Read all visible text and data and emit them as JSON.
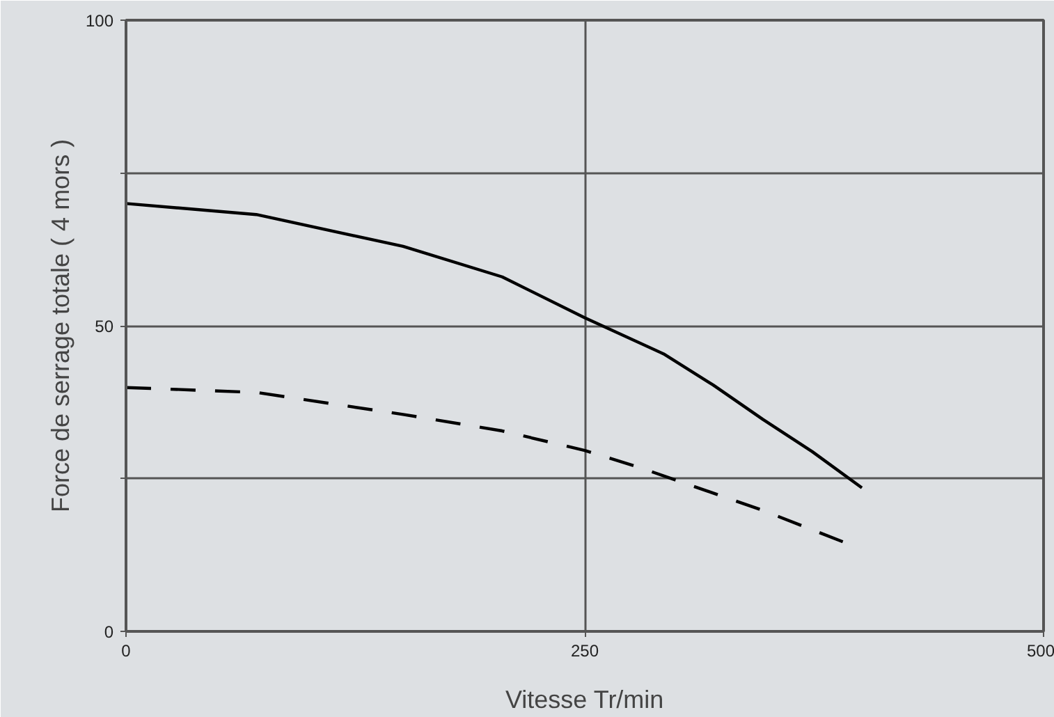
{
  "chart_data": {
    "type": "line",
    "xlabel": "Vitesse Tr/min",
    "ylabel": "Force de serrage totale ( 4 mors )",
    "xlim": [
      0,
      500
    ],
    "ylim": [
      0,
      100
    ],
    "xticks": [
      0,
      250,
      500
    ],
    "yticks": [
      0,
      {
        "value": 25,
        "label": null
      },
      50,
      {
        "value": 75,
        "label": null
      },
      100
    ],
    "grid": true,
    "marker": "none",
    "series": [
      {
        "color": "#000000",
        "line_style": "solid",
        "x": [
          0,
          71,
          151,
          205,
          250,
          293,
          320,
          347,
          374,
          401
        ],
        "values": [
          70,
          68.2,
          63,
          58,
          51.3,
          45.4,
          40.3,
          34.7,
          29.4,
          23.5
        ]
      },
      {
        "color": "#000000",
        "line_style": "dashed",
        "x": [
          0,
          71,
          151,
          205,
          250,
          279,
          347,
          392
        ],
        "values": [
          39.9,
          39.1,
          35.5,
          32.8,
          29.6,
          26.9,
          19.8,
          14.5
        ]
      }
    ]
  }
}
